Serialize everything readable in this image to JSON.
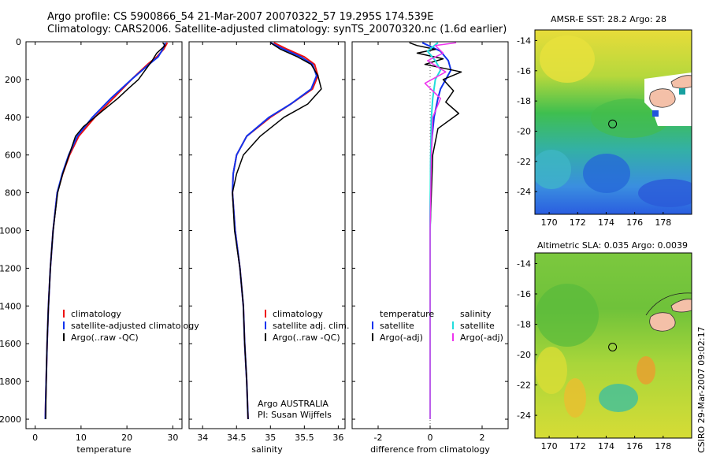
{
  "title": {
    "line1": "Argo profile: CS 5900866_54 21-Mar-2007 20070322_57 19.295S 174.539E",
    "line2": "Climatology: CARS2006. Satellite-adjusted climatology: synTS_20070320.nc (1.6d earlier)"
  },
  "timestamp": "CSIRO 29-Mar-2007 09:02:17",
  "credit": {
    "line1": "Argo AUSTRALIA",
    "line2": "PI: Susan Wijffels"
  },
  "colors": {
    "climatology": "#ee1111",
    "satellite": "#1133ee",
    "argo": "#000000",
    "satellite_salinity": "#22dddd",
    "argo_salinity": "#ee33ee"
  },
  "legends": {
    "temperature": [
      "climatology",
      "satellite-adjusted climatology",
      "Argo(..raw -QC)"
    ],
    "salinity": [
      "climatology",
      "satellite adj. clim.",
      "Argo(..raw -QC)"
    ],
    "difference": {
      "temperature_header": "temperature",
      "salinity_header": "salinity",
      "temperature_items": [
        "satellite",
        "Argo(-adj)"
      ],
      "salinity_items": [
        "satellite",
        "Argo(-adj)"
      ]
    }
  },
  "maps": {
    "sst_title": "AMSR-E SST: 28.2 Argo: 28",
    "sla_title": "Altimetric SLA: 0.035 Argo: 0.0039"
  },
  "chart_data": [
    {
      "type": "line",
      "id": "temperature_profile",
      "xlabel": "temperature",
      "ylabel": "",
      "xlim": [
        -2,
        32
      ],
      "ylim": [
        2050,
        0
      ],
      "xticks": [
        0,
        10,
        20,
        30
      ],
      "yticks": [
        0,
        200,
        400,
        600,
        800,
        1000,
        1200,
        1400,
        1600,
        1800,
        2000
      ],
      "series": [
        {
          "name": "climatology",
          "color": "#ee1111",
          "width": 2,
          "x": [
            28.8,
            28,
            26.5,
            24.5,
            21,
            17,
            13,
            9.5,
            7.5,
            6,
            4.8,
            3.9,
            3.3,
            2.9,
            2.6,
            2.4,
            2.3,
            2.2
          ],
          "y": [
            5,
            40,
            80,
            120,
            200,
            300,
            400,
            500,
            600,
            700,
            800,
            1000,
            1200,
            1400,
            1600,
            1800,
            1900,
            2000
          ]
        },
        {
          "name": "satellite-adjusted climatology",
          "color": "#1133ee",
          "width": 2,
          "x": [
            28.4,
            27.8,
            26.8,
            24.8,
            21,
            16.5,
            12.5,
            9.2,
            7.3,
            5.9,
            4.8,
            3.9,
            3.3,
            2.9,
            2.6,
            2.4,
            2.3,
            2.2
          ],
          "y": [
            5,
            40,
            80,
            120,
            200,
            300,
            400,
            500,
            600,
            700,
            800,
            1000,
            1200,
            1400,
            1600,
            1800,
            1900,
            2000
          ]
        },
        {
          "name": "Argo(..raw -QC)",
          "color": "#000000",
          "width": 1.5,
          "x": [
            27.8,
            28.3,
            26.5,
            25.5,
            24,
            22.5,
            20.2,
            18,
            15.5,
            13,
            10.5,
            8.8,
            7.4,
            6,
            4.9,
            3.9,
            3.3,
            2.9,
            2.6,
            2.4,
            2.3
          ],
          "y": [
            5,
            20,
            60,
            100,
            150,
            200,
            250,
            300,
            350,
            400,
            450,
            500,
            600,
            700,
            800,
            1000,
            1200,
            1400,
            1600,
            1800,
            2000
          ]
        }
      ]
    },
    {
      "type": "line",
      "id": "salinity_profile",
      "xlabel": "salinity",
      "ylabel": "",
      "xlim": [
        33.8,
        36.1
      ],
      "ylim": [
        2050,
        0
      ],
      "xticks": [
        34,
        34.5,
        35,
        35.5,
        36
      ],
      "series": [
        {
          "name": "climatology",
          "color": "#ee1111",
          "width": 2,
          "x": [
            35.05,
            35.25,
            35.5,
            35.65,
            35.7,
            35.62,
            35.3,
            35,
            34.65,
            34.5,
            34.45,
            34.44,
            34.48,
            34.55,
            34.6,
            34.62,
            34.65,
            34.67
          ],
          "y": [
            5,
            40,
            80,
            120,
            180,
            250,
            330,
            400,
            500,
            600,
            700,
            800,
            1000,
            1200,
            1400,
            1600,
            1800,
            2000
          ]
        },
        {
          "name": "satellite adj. clim.",
          "color": "#1133ee",
          "width": 2,
          "x": [
            35.0,
            35.2,
            35.45,
            35.62,
            35.68,
            35.6,
            35.3,
            34.98,
            34.65,
            34.5,
            34.45,
            34.44,
            34.48,
            34.55,
            34.6,
            34.62,
            34.65,
            34.67
          ],
          "y": [
            5,
            40,
            80,
            120,
            180,
            250,
            330,
            400,
            500,
            600,
            700,
            800,
            1000,
            1200,
            1400,
            1600,
            1800,
            2000
          ]
        },
        {
          "name": "Argo(..raw -QC)",
          "color": "#000000",
          "width": 1.5,
          "x": [
            35.0,
            35.15,
            35.4,
            35.6,
            35.7,
            35.75,
            35.55,
            35.2,
            34.85,
            34.6,
            34.5,
            34.44,
            34.47,
            34.55,
            34.6,
            34.62,
            34.65,
            34.67
          ],
          "y": [
            5,
            40,
            80,
            120,
            180,
            250,
            330,
            400,
            500,
            600,
            700,
            800,
            1000,
            1200,
            1400,
            1600,
            1800,
            2000
          ]
        }
      ]
    },
    {
      "type": "line",
      "id": "difference_profile",
      "xlabel": "difference from climatology",
      "ylabel": "",
      "xlim": [
        -3,
        3
      ],
      "ylim": [
        2050,
        0
      ],
      "xticks": [
        -2,
        0,
        2
      ],
      "series": [
        {
          "name": "temperature satellite",
          "color": "#1133ee",
          "width": 2,
          "x": [
            -0.3,
            0.4,
            0.7,
            0.8,
            0.6,
            0.4,
            0.3,
            0.15,
            0.08,
            0.03,
            0.02,
            0,
            0,
            0
          ],
          "y": [
            5,
            50,
            100,
            150,
            200,
            250,
            300,
            400,
            500,
            600,
            700,
            1000,
            1500,
            2000
          ]
        },
        {
          "name": "temperature Argo(-adj)",
          "color": "#000000",
          "width": 1.5,
          "x": [
            -0.8,
            -0.5,
            0.2,
            -0.5,
            0.5,
            -0.2,
            1.2,
            0.5,
            0.9,
            0.6,
            1.1,
            0.3,
            0.1,
            0.05,
            0,
            0,
            0
          ],
          "y": [
            5,
            20,
            40,
            60,
            90,
            120,
            160,
            200,
            260,
            320,
            380,
            460,
            600,
            800,
            1000,
            1500,
            2000
          ]
        },
        {
          "name": "salinity satellite",
          "color": "#22dddd",
          "width": 2,
          "x": [
            0.3,
            -0.1,
            0.2,
            0.4,
            0.2,
            0.1,
            0.05,
            0.02,
            0,
            0,
            0
          ],
          "y": [
            5,
            50,
            100,
            150,
            200,
            300,
            400,
            600,
            1000,
            1500,
            2000
          ]
        },
        {
          "name": "salinity Argo(-adj)",
          "color": "#ee33ee",
          "width": 1.5,
          "x": [
            1.0,
            0.2,
            0.5,
            -0.1,
            0.6,
            -0.2,
            0.4,
            0.1,
            0.05,
            0,
            0
          ],
          "y": [
            5,
            20,
            60,
            100,
            160,
            220,
            300,
            400,
            600,
            1000,
            2000
          ]
        }
      ]
    },
    {
      "type": "heatmap",
      "id": "sst_map",
      "title": "AMSR-E SST: 28.2 Argo: 28",
      "xlim": [
        169,
        180
      ],
      "ylim": [
        -25.5,
        -13.3
      ],
      "xticks": [
        170,
        172,
        174,
        176,
        178
      ],
      "yticks": [
        -14,
        -16,
        -18,
        -20,
        -22,
        -24
      ],
      "marker": {
        "lon": 174.539,
        "lat": -19.295
      }
    },
    {
      "type": "heatmap",
      "id": "sla_map",
      "title": "Altimetric SLA: 0.035 Argo: 0.0039",
      "xlim": [
        169,
        180
      ],
      "ylim": [
        -25.5,
        -13.3
      ],
      "xticks": [
        170,
        172,
        174,
        176,
        178
      ],
      "yticks": [
        -14,
        -16,
        -18,
        -20,
        -22,
        -24
      ],
      "marker": {
        "lon": 174.539,
        "lat": -19.295
      }
    }
  ]
}
